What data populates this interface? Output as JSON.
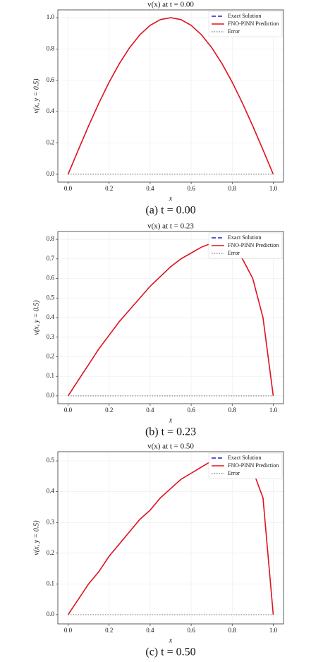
{
  "chart_data": [
    {
      "type": "line",
      "title": "v(x) at t = 0.00",
      "caption": "(a) t = 0.00",
      "x_label": "x",
      "y_label": "v(x, y = 0.5)",
      "x": [
        0,
        0.05,
        0.1,
        0.15,
        0.2,
        0.25,
        0.3,
        0.35,
        0.4,
        0.45,
        0.5,
        0.55,
        0.6,
        0.65,
        0.7,
        0.75,
        0.8,
        0.85,
        0.9,
        0.95,
        1
      ],
      "series": [
        {
          "name": "Exact Solution",
          "color": "#1f1fd6",
          "style": "dashed",
          "values": [
            0,
            0.156,
            0.309,
            0.454,
            0.588,
            0.707,
            0.809,
            0.891,
            0.951,
            0.988,
            1,
            0.988,
            0.951,
            0.891,
            0.809,
            0.707,
            0.588,
            0.454,
            0.309,
            0.156,
            0
          ]
        },
        {
          "name": "FNO-PINN Prediction",
          "color": "#e0141e",
          "style": "solid",
          "values": [
            0,
            0.156,
            0.309,
            0.454,
            0.588,
            0.707,
            0.809,
            0.891,
            0.951,
            0.988,
            1,
            0.988,
            0.951,
            0.891,
            0.809,
            0.707,
            0.588,
            0.454,
            0.309,
            0.156,
            0
          ]
        },
        {
          "name": "Error",
          "color": "#888888",
          "style": "dotted",
          "values": [
            0,
            0,
            0,
            0,
            0,
            0,
            0,
            0,
            0,
            0,
            0,
            0,
            0,
            0,
            0,
            0,
            0,
            0,
            0,
            0,
            0
          ]
        }
      ],
      "xlim": [
        -0.05,
        1.05
      ],
      "xticks": [
        {
          "value": 0,
          "label": "0.0"
        },
        0.2,
        0.4,
        0.6,
        0.8,
        {
          "value": 1,
          "label": "1.0"
        }
      ],
      "ylim": [
        -0.05,
        1.05
      ],
      "yticks": [
        {
          "value": 0,
          "label": "0.0"
        },
        0.2,
        0.4,
        0.6,
        0.8,
        {
          "value": 1,
          "label": "1.0"
        }
      ],
      "grid": true,
      "legend": "upper right"
    },
    {
      "type": "line",
      "title": "v(x) at t = 0.23",
      "caption": "(b) t = 0.23",
      "x_label": "x",
      "y_label": "v(x, y = 0.5)",
      "x": [
        0,
        0.05,
        0.1,
        0.15,
        0.2,
        0.25,
        0.3,
        0.35,
        0.4,
        0.45,
        0.5,
        0.55,
        0.6,
        0.65,
        0.7,
        0.75,
        0.8,
        0.85,
        0.9,
        0.95,
        1
      ],
      "series": [
        {
          "name": "Exact Solution",
          "color": "#1f1fd6",
          "style": "dashed",
          "values": [
            0,
            0.08,
            0.16,
            0.24,
            0.31,
            0.38,
            0.44,
            0.5,
            0.56,
            0.61,
            0.66,
            0.7,
            0.73,
            0.76,
            0.78,
            0.79,
            0.76,
            0.7,
            0.6,
            0.4,
            0
          ]
        },
        {
          "name": "FNO-PINN Prediction",
          "color": "#e0141e",
          "style": "solid",
          "values": [
            0,
            0.08,
            0.16,
            0.24,
            0.31,
            0.38,
            0.44,
            0.5,
            0.56,
            0.61,
            0.66,
            0.7,
            0.73,
            0.76,
            0.78,
            0.79,
            0.76,
            0.7,
            0.6,
            0.4,
            0
          ]
        },
        {
          "name": "Error",
          "color": "#888888",
          "style": "dotted",
          "values": [
            0,
            0,
            0,
            0,
            0,
            0,
            0,
            0,
            0,
            0,
            0,
            0,
            0,
            0,
            0,
            0,
            0,
            0,
            0,
            0,
            0
          ]
        }
      ],
      "xlim": [
        -0.05,
        1.05
      ],
      "xticks": [
        {
          "value": 0,
          "label": "0.0"
        },
        0.2,
        0.4,
        0.6,
        0.8,
        {
          "value": 1,
          "label": "1.0"
        }
      ],
      "ylim": [
        -0.04,
        0.84
      ],
      "yticks": [
        {
          "value": 0,
          "label": "0.0"
        },
        0.1,
        0.2,
        0.3,
        0.4,
        0.5,
        0.6,
        0.7,
        0.8
      ],
      "grid": true,
      "legend": "upper right"
    },
    {
      "type": "line",
      "title": "v(x) at t = 0.50",
      "caption": "(c) t = 0.50",
      "x_label": "x",
      "y_label": "v(x, y = 0.5)",
      "x": [
        0,
        0.05,
        0.1,
        0.15,
        0.2,
        0.25,
        0.3,
        0.35,
        0.4,
        0.45,
        0.5,
        0.55,
        0.6,
        0.65,
        0.7,
        0.75,
        0.8,
        0.85,
        0.9,
        0.95,
        1
      ],
      "series": [
        {
          "name": "Exact Solution",
          "color": "#1f1fd6",
          "style": "dashed",
          "values": [
            0,
            0.05,
            0.1,
            0.14,
            0.19,
            0.23,
            0.27,
            0.31,
            0.34,
            0.38,
            0.41,
            0.44,
            0.46,
            0.48,
            0.5,
            0.5,
            0.5,
            0.49,
            0.47,
            0.38,
            0
          ]
        },
        {
          "name": "FNO-PINN Prediction",
          "color": "#e0141e",
          "style": "solid",
          "values": [
            0,
            0.05,
            0.1,
            0.14,
            0.19,
            0.23,
            0.27,
            0.31,
            0.34,
            0.38,
            0.41,
            0.44,
            0.46,
            0.48,
            0.5,
            0.5,
            0.5,
            0.49,
            0.47,
            0.38,
            0
          ]
        },
        {
          "name": "Error",
          "color": "#888888",
          "style": "dotted",
          "values": [
            0,
            0,
            0,
            0,
            0,
            0,
            0,
            0,
            0,
            0,
            0,
            0,
            0,
            0,
            0,
            0,
            0,
            0,
            0,
            0,
            0
          ]
        }
      ],
      "xlim": [
        -0.05,
        1.05
      ],
      "xticks": [
        {
          "value": 0,
          "label": "0.0"
        },
        0.2,
        0.4,
        0.6,
        0.8,
        {
          "value": 1,
          "label": "1.0"
        }
      ],
      "ylim": [
        -0.03,
        0.53
      ],
      "yticks": [
        {
          "value": 0,
          "label": "0.0"
        },
        0.1,
        0.2,
        0.3,
        0.4,
        0.5
      ],
      "grid": true,
      "legend": "upper right"
    }
  ]
}
